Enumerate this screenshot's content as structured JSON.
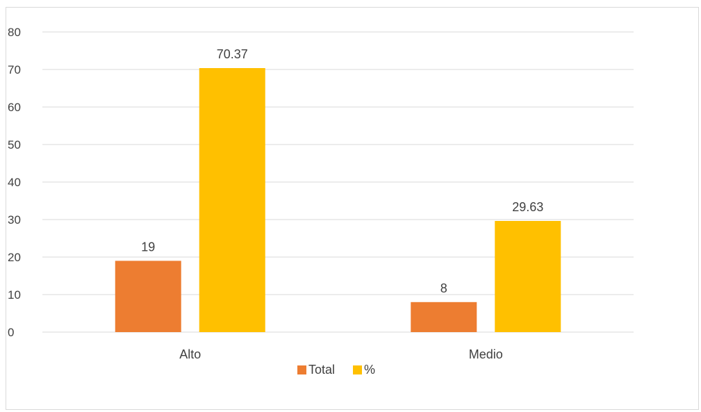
{
  "chart_data": {
    "type": "bar",
    "categories": [
      "Alto",
      "Medio"
    ],
    "series": [
      {
        "name": "Total",
        "values": [
          19,
          8
        ],
        "color": "#ed7d31"
      },
      {
        "name": "%",
        "values": [
          70.37,
          29.63
        ],
        "color": "#ffc000"
      }
    ],
    "data_labels": [
      [
        "19",
        "8"
      ],
      [
        "70.37",
        "29.63"
      ]
    ],
    "ylim": [
      0,
      80
    ],
    "yticks": [
      0,
      10,
      20,
      30,
      40,
      50,
      60,
      70,
      80
    ],
    "grid": true,
    "legend_position": "bottom",
    "gridline_color": "#d9d9d9"
  }
}
